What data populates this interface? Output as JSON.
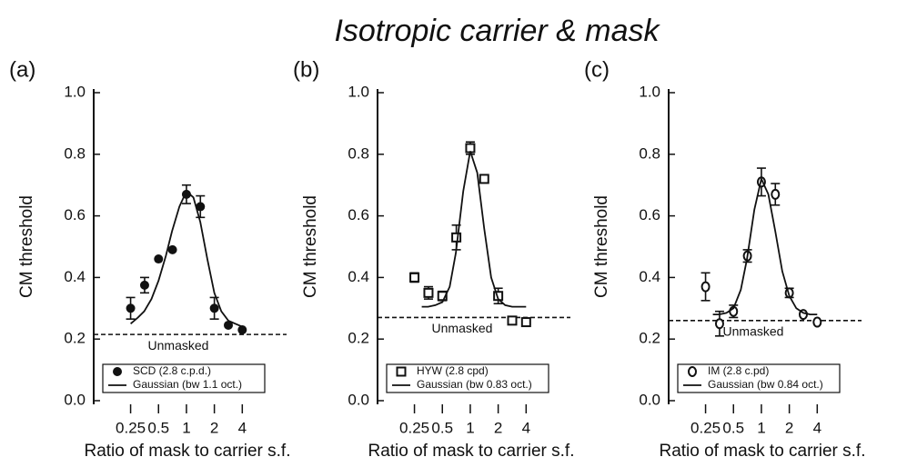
{
  "title": "Isotropic carrier & mask",
  "chart_data": [
    {
      "type": "scatter",
      "panel_label": "(a)",
      "ylabel": "CM threshold",
      "xlabel": "Ratio of mask to carrier s.f.",
      "xscale": "log",
      "xlim": [
        0.1,
        8
      ],
      "xticks": [
        0.25,
        0.5,
        1,
        2,
        4
      ],
      "ylim": [
        0,
        1
      ],
      "yticks": [
        {
          "value": 0,
          "label": "0.0"
        },
        {
          "value": 0.2,
          "label": "0.2"
        },
        {
          "value": 0.4,
          "label": "0.4"
        },
        {
          "value": 0.6,
          "label": "0.6"
        },
        {
          "value": 0.8,
          "label": "0.8"
        },
        {
          "value": 1,
          "label": "1.0"
        }
      ],
      "reference_line": {
        "value": 0.215,
        "label": "Unmasked"
      },
      "series": [
        {
          "name": "SCD (2.8 c.p.d.)",
          "marker": "filled-circle",
          "color": "#111111",
          "x": [
            0.25,
            0.354,
            0.5,
            0.707,
            1,
            1.414,
            2,
            2.83,
            4
          ],
          "values": [
            0.3,
            0.375,
            0.46,
            0.49,
            0.67,
            0.63,
            0.3,
            0.245,
            0.23
          ],
          "errors": [
            0.035,
            0.025,
            0,
            0,
            0.03,
            0.035,
            0.035,
            0,
            0
          ]
        },
        {
          "name": "Gaussian (bw 1.1 oct.)",
          "marker": "line",
          "color": "#111111",
          "x": [
            0.25,
            0.3,
            0.35,
            0.42,
            0.5,
            0.6,
            0.7,
            0.84,
            1,
            1.19,
            1.41,
            1.68,
            2,
            2.38,
            2.83,
            3.36,
            4
          ],
          "values": [
            0.25,
            0.27,
            0.29,
            0.33,
            0.39,
            0.47,
            0.55,
            0.63,
            0.68,
            0.66,
            0.58,
            0.46,
            0.35,
            0.29,
            0.26,
            0.25,
            0.24
          ]
        }
      ]
    },
    {
      "type": "scatter",
      "panel_label": "(b)",
      "ylabel": "CM threshold",
      "xlabel": "Ratio of mask to carrier s.f.",
      "xscale": "log",
      "xlim": [
        0.1,
        8
      ],
      "xticks": [
        0.25,
        0.5,
        1,
        2,
        4
      ],
      "ylim": [
        0,
        1
      ],
      "yticks": [
        {
          "value": 0,
          "label": "0.0"
        },
        {
          "value": 0.2,
          "label": "0.2"
        },
        {
          "value": 0.4,
          "label": "0.4"
        },
        {
          "value": 0.6,
          "label": "0.6"
        },
        {
          "value": 0.8,
          "label": "0.8"
        },
        {
          "value": 1,
          "label": "1.0"
        }
      ],
      "reference_line": {
        "value": 0.27,
        "label": "Unmasked"
      },
      "series": [
        {
          "name": "HYW (2.8 cpd)",
          "marker": "open-square",
          "color": "#111111",
          "x": [
            0.25,
            0.354,
            0.5,
            0.707,
            1,
            1.414,
            2,
            2.83,
            4
          ],
          "values": [
            0.4,
            0.35,
            0.34,
            0.53,
            0.82,
            0.72,
            0.34,
            0.26,
            0.255
          ],
          "errors": [
            0.015,
            0.02,
            0.015,
            0.04,
            0.02,
            0.01,
            0.025,
            0,
            0
          ]
        },
        {
          "name": "Gaussian (bw 0.83 oct.)",
          "marker": "line",
          "color": "#111111",
          "x": [
            0.3,
            0.35,
            0.42,
            0.5,
            0.6,
            0.7,
            0.84,
            1,
            1.19,
            1.41,
            1.68,
            2,
            2.38,
            2.83,
            3.36,
            4
          ],
          "values": [
            0.305,
            0.305,
            0.31,
            0.32,
            0.37,
            0.48,
            0.68,
            0.81,
            0.74,
            0.56,
            0.4,
            0.33,
            0.31,
            0.305,
            0.305,
            0.305
          ]
        }
      ]
    },
    {
      "type": "scatter",
      "panel_label": "(c)",
      "ylabel": "CM threshold",
      "xlabel": "Ratio of mask to carrier s.f.",
      "xscale": "log",
      "xlim": [
        0.1,
        8
      ],
      "xticks": [
        0.25,
        0.5,
        1,
        2,
        4
      ],
      "ylim": [
        0,
        1
      ],
      "yticks": [
        {
          "value": 0,
          "label": "0.0"
        },
        {
          "value": 0.2,
          "label": "0.2"
        },
        {
          "value": 0.4,
          "label": "0.4"
        },
        {
          "value": 0.6,
          "label": "0.6"
        },
        {
          "value": 0.8,
          "label": "0.8"
        },
        {
          "value": 1,
          "label": "1.0"
        }
      ],
      "reference_line": {
        "value": 0.26,
        "label": "Unmasked"
      },
      "series": [
        {
          "name": "IM (2.8 c.pd)",
          "marker": "open-circle",
          "color": "#111111",
          "x": [
            0.25,
            0.354,
            0.5,
            0.707,
            1,
            1.414,
            2,
            2.83,
            4
          ],
          "values": [
            0.37,
            0.25,
            0.29,
            0.47,
            0.71,
            0.67,
            0.35,
            0.28,
            0.255
          ],
          "errors": [
            0.045,
            0.04,
            0.02,
            0.02,
            0.045,
            0.035,
            0.015,
            0,
            0
          ]
        },
        {
          "name": "Gaussian (bw 0.84 oct.)",
          "marker": "line",
          "color": "#111111",
          "x": [
            0.3,
            0.35,
            0.42,
            0.5,
            0.6,
            0.7,
            0.84,
            1,
            1.19,
            1.41,
            1.68,
            2,
            2.38,
            2.83,
            3.36,
            4
          ],
          "values": [
            0.28,
            0.28,
            0.285,
            0.3,
            0.36,
            0.46,
            0.62,
            0.72,
            0.67,
            0.55,
            0.42,
            0.34,
            0.3,
            0.285,
            0.28,
            0.28
          ]
        }
      ]
    }
  ]
}
